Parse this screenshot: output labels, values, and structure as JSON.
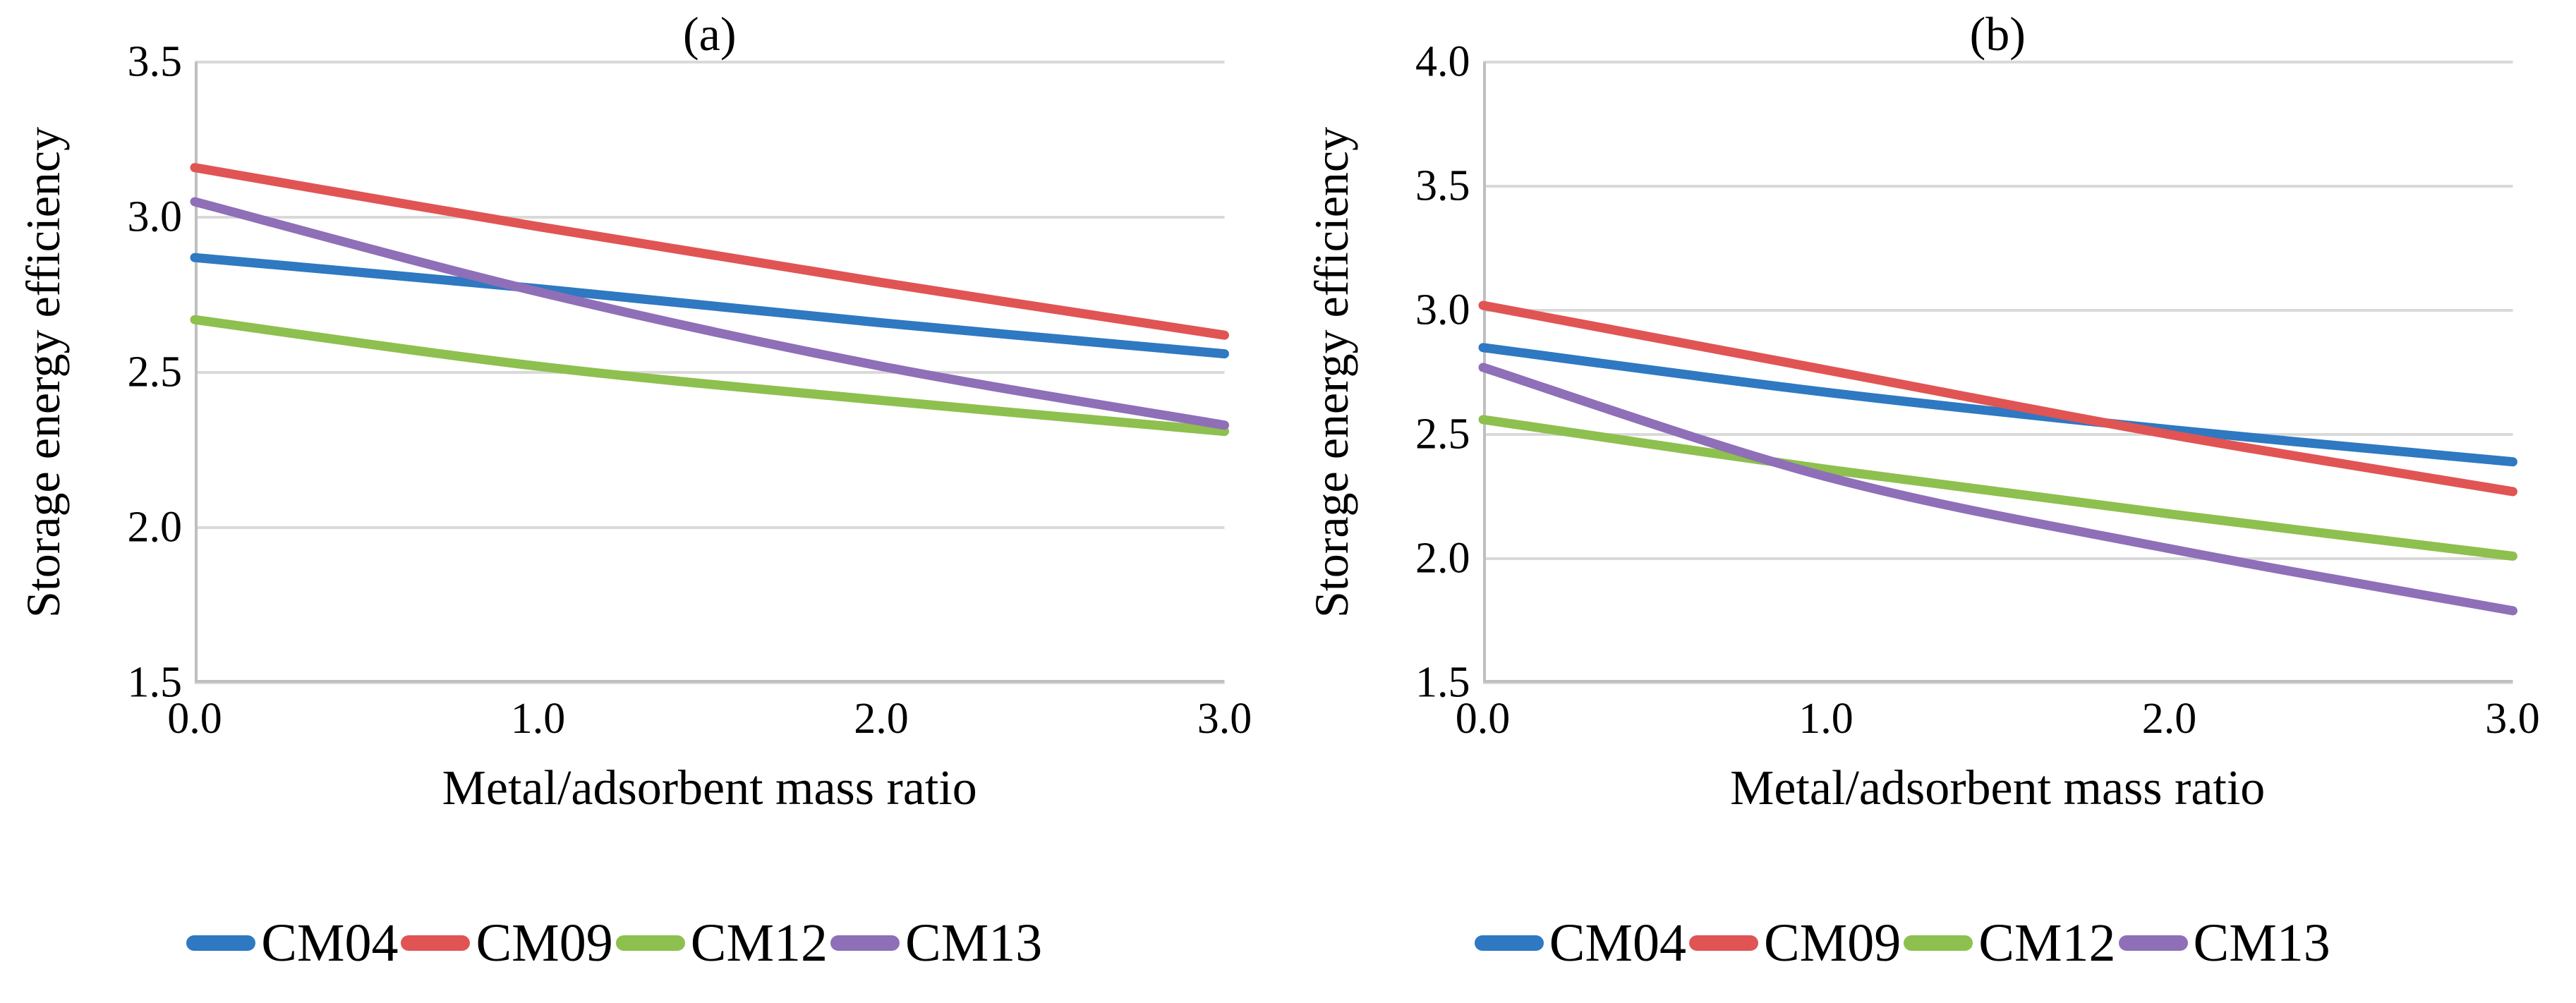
{
  "figure": {
    "grid_color": "#D9D9D9",
    "axis_color": "#BFBFBF",
    "background": "#FFFFFF",
    "text_color": "#000000",
    "series_colors": {
      "CM04": "#2E79C1",
      "CM09": "#E15454",
      "CM12": "#8DC04E",
      "CM13": "#8F6FB8"
    }
  },
  "chart_data": [
    {
      "type": "line",
      "title": "(a)",
      "xlabel": "Metal/adsorbent mass ratio",
      "ylabel": "Storage energy efficiency",
      "x": [
        0.0,
        1.0,
        2.0,
        3.0
      ],
      "xtick_labels": [
        "0.0",
        "1.0",
        "2.0",
        "3.0"
      ],
      "ytick_labels": [
        "1.5",
        "2.0",
        "2.5",
        "3.0",
        "3.5"
      ],
      "xlim": [
        0,
        3
      ],
      "ylim": [
        1.5,
        3.5
      ],
      "grid": "horizontal",
      "legend_position": "bottom",
      "series": [
        {
          "name": "CM04",
          "color": "#2E79C1",
          "values": [
            2.87,
            2.77,
            2.66,
            2.56
          ]
        },
        {
          "name": "CM09",
          "color": "#E15454",
          "values": [
            3.16,
            2.97,
            2.79,
            2.62
          ]
        },
        {
          "name": "CM12",
          "color": "#8DC04E",
          "values": [
            2.67,
            2.52,
            2.41,
            2.31
          ]
        },
        {
          "name": "CM13",
          "color": "#8F6FB8",
          "values": [
            3.05,
            2.76,
            2.52,
            2.33
          ]
        }
      ]
    },
    {
      "type": "line",
      "title": "(b)",
      "xlabel": "Metal/adsorbent mass ratio",
      "ylabel": "Storage energy efficiency",
      "x": [
        0.0,
        1.0,
        2.0,
        3.0
      ],
      "xtick_labels": [
        "0.0",
        "1.0",
        "2.0",
        "3.0"
      ],
      "ytick_labels": [
        "1.5",
        "2.0",
        "2.5",
        "3.0",
        "3.5",
        "4.0"
      ],
      "xlim": [
        0,
        3
      ],
      "ylim": [
        1.5,
        4.0
      ],
      "grid": "horizontal",
      "legend_position": "bottom",
      "series": [
        {
          "name": "CM04",
          "color": "#2E79C1",
          "values": [
            2.85,
            2.67,
            2.52,
            2.39
          ]
        },
        {
          "name": "CM09",
          "color": "#E15454",
          "values": [
            3.02,
            2.76,
            2.5,
            2.27
          ]
        },
        {
          "name": "CM12",
          "color": "#8DC04E",
          "values": [
            2.56,
            2.36,
            2.18,
            2.01
          ]
        },
        {
          "name": "CM13",
          "color": "#8F6FB8",
          "values": [
            2.77,
            2.33,
            2.04,
            1.79
          ]
        }
      ]
    }
  ]
}
